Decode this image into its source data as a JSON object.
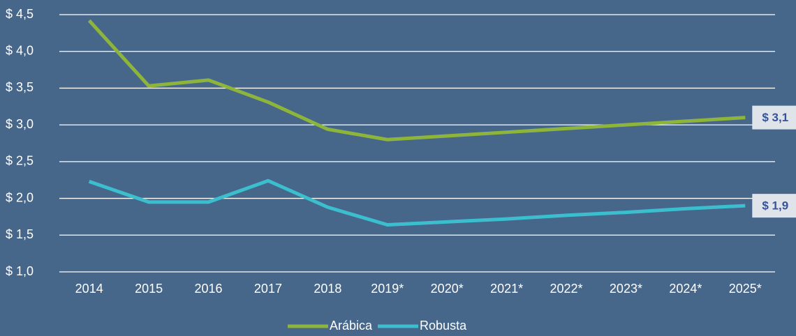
{
  "chart_data": {
    "type": "line",
    "categories": [
      "2014",
      "2015",
      "2016",
      "2017",
      "2018",
      "2019*",
      "2020*",
      "2021*",
      "2022*",
      "2023*",
      "2024*",
      "2025*"
    ],
    "series": [
      {
        "name": "Arábica",
        "color": "#8db53c",
        "values": [
          4.42,
          3.53,
          3.61,
          3.31,
          2.94,
          2.8,
          2.85,
          2.9,
          2.95,
          3.0,
          3.05,
          3.1
        ],
        "value_labels": [
          null,
          null,
          null,
          null,
          null,
          null,
          null,
          null,
          null,
          null,
          null,
          "$ 3,1"
        ]
      },
      {
        "name": "Robusta",
        "color": "#3bbfcf",
        "values": [
          2.23,
          1.95,
          1.95,
          2.24,
          1.88,
          1.64,
          1.68,
          1.72,
          1.77,
          1.81,
          1.86,
          1.9
        ],
        "value_labels": [
          null,
          null,
          null,
          null,
          null,
          null,
          null,
          null,
          null,
          null,
          null,
          "$ 1,9"
        ]
      }
    ],
    "ylim": [
      1.0,
      4.5
    ],
    "yticks": [
      {
        "value": 1.0,
        "label": "$ 1,0"
      },
      {
        "value": 1.5,
        "label": "$ 1,5"
      },
      {
        "value": 2.0,
        "label": "$ 2,0"
      },
      {
        "value": 2.5,
        "label": "$ 2,5"
      },
      {
        "value": 3.0,
        "label": "$ 3,0"
      },
      {
        "value": 3.5,
        "label": "$ 3,5"
      },
      {
        "value": 4.0,
        "label": "$ 4,0"
      },
      {
        "value": 4.5,
        "label": "$ 4,5"
      }
    ],
    "grid": true,
    "legend": "bottom"
  }
}
